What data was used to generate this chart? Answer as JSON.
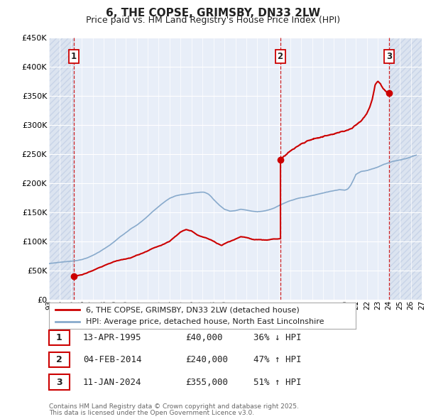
{
  "title": "6, THE COPSE, GRIMSBY, DN33 2LW",
  "subtitle": "Price paid vs. HM Land Registry's House Price Index (HPI)",
  "footer_line1": "Contains HM Land Registry data © Crown copyright and database right 2025.",
  "footer_line2": "This data is licensed under the Open Government Licence v3.0.",
  "legend_label1": "6, THE COPSE, GRIMSBY, DN33 2LW (detached house)",
  "legend_label2": "HPI: Average price, detached house, North East Lincolnshire",
  "sale1_date": "13-APR-1995",
  "sale1_price": "£40,000",
  "sale1_hpi": "36% ↓ HPI",
  "sale2_date": "04-FEB-2014",
  "sale2_price": "£240,000",
  "sale2_hpi": "47% ↑ HPI",
  "sale3_date": "11-JAN-2024",
  "sale3_price": "£355,000",
  "sale3_hpi": "51% ↑ HPI",
  "ylim": [
    0,
    450000
  ],
  "yticks": [
    0,
    50000,
    100000,
    150000,
    200000,
    250000,
    300000,
    350000,
    400000,
    450000
  ],
  "ytick_labels": [
    "£0",
    "£50K",
    "£100K",
    "£150K",
    "£200K",
    "£250K",
    "£300K",
    "£350K",
    "£400K",
    "£450K"
  ],
  "property_color": "#cc0000",
  "hpi_color": "#88aacc",
  "hatch_bg_color": "#dce4f0",
  "plot_bg_color": "#e8eef8",
  "grid_color": "#ffffff",
  "sale_marker_dates": [
    1995.28,
    2014.09,
    2024.03
  ],
  "sale_marker_values": [
    40000,
    240000,
    355000
  ],
  "xmin": 1993,
  "xmax": 2027,
  "prop_x1": [
    1995.28,
    1995.5,
    1996,
    1996.5,
    1997,
    1997.5,
    1998,
    1998.5,
    1999,
    1999.5,
    2000,
    2000.5,
    2001,
    2001.5,
    2002,
    2002.5,
    2003,
    2003.5,
    2004,
    2004.5,
    2005,
    2005.5,
    2006,
    2006.5,
    2007,
    2007.5,
    2008,
    2008.25,
    2008.5,
    2008.75,
    2009,
    2009.5,
    2010,
    2010.5,
    2011,
    2011.5,
    2012,
    2012.5,
    2013,
    2013.5,
    2014.09
  ],
  "prop_y1": [
    40000,
    41000,
    43000,
    46000,
    50000,
    54000,
    58000,
    62000,
    65000,
    68000,
    70000,
    72000,
    76000,
    80000,
    84000,
    88000,
    92000,
    96000,
    100000,
    108000,
    116000,
    120000,
    118000,
    112000,
    108000,
    105000,
    100000,
    97000,
    95000,
    93000,
    96000,
    100000,
    104000,
    108000,
    106000,
    104000,
    103000,
    102000,
    103000,
    104000,
    105000
  ],
  "prop_x2": [
    2014.09,
    2014.5,
    2015,
    2015.5,
    2016,
    2016.5,
    2017,
    2017.5,
    2018,
    2018.5,
    2019,
    2019.5,
    2020,
    2020.5,
    2021,
    2021.5,
    2022,
    2022.25,
    2022.5,
    2022.75,
    2023,
    2023.25,
    2023.5,
    2023.75,
    2024.03
  ],
  "prop_y2": [
    240000,
    248000,
    255000,
    262000,
    268000,
    272000,
    275000,
    278000,
    280000,
    283000,
    285000,
    288000,
    290000,
    293000,
    300000,
    308000,
    320000,
    330000,
    345000,
    370000,
    375000,
    370000,
    362000,
    358000,
    355000
  ],
  "hpi_x": [
    1993,
    1993.5,
    1994,
    1994.5,
    1995,
    1995.5,
    1996,
    1996.5,
    1997,
    1997.5,
    1998,
    1998.5,
    1999,
    1999.5,
    2000,
    2000.5,
    2001,
    2001.5,
    2002,
    2002.5,
    2003,
    2003.5,
    2004,
    2004.5,
    2005,
    2005.5,
    2006,
    2006.5,
    2007,
    2007.25,
    2007.5,
    2007.75,
    2008,
    2008.5,
    2009,
    2009.5,
    2010,
    2010.5,
    2011,
    2011.5,
    2012,
    2012.5,
    2013,
    2013.5,
    2014,
    2014.5,
    2015,
    2015.5,
    2016,
    2016.5,
    2017,
    2017.5,
    2018,
    2018.5,
    2019,
    2019.5,
    2020,
    2020.25,
    2020.5,
    2020.75,
    2021,
    2021.5,
    2022,
    2022.5,
    2023,
    2023.5,
    2024,
    2024.5,
    2025,
    2025.5,
    2026,
    2026.5
  ],
  "hpi_y": [
    62000,
    63000,
    64000,
    65000,
    66000,
    67000,
    69000,
    72000,
    76000,
    81000,
    87000,
    93000,
    100000,
    108000,
    115000,
    122000,
    128000,
    135000,
    143000,
    152000,
    160000,
    167000,
    174000,
    178000,
    180000,
    181000,
    183000,
    184000,
    185000,
    184000,
    182000,
    178000,
    172000,
    163000,
    155000,
    152000,
    153000,
    155000,
    154000,
    152000,
    151000,
    152000,
    154000,
    157000,
    162000,
    166000,
    170000,
    173000,
    175000,
    177000,
    179000,
    181000,
    183000,
    185000,
    187000,
    189000,
    188000,
    190000,
    196000,
    205000,
    215000,
    220000,
    222000,
    225000,
    228000,
    232000,
    235000,
    238000,
    240000,
    242000,
    245000,
    248000
  ]
}
